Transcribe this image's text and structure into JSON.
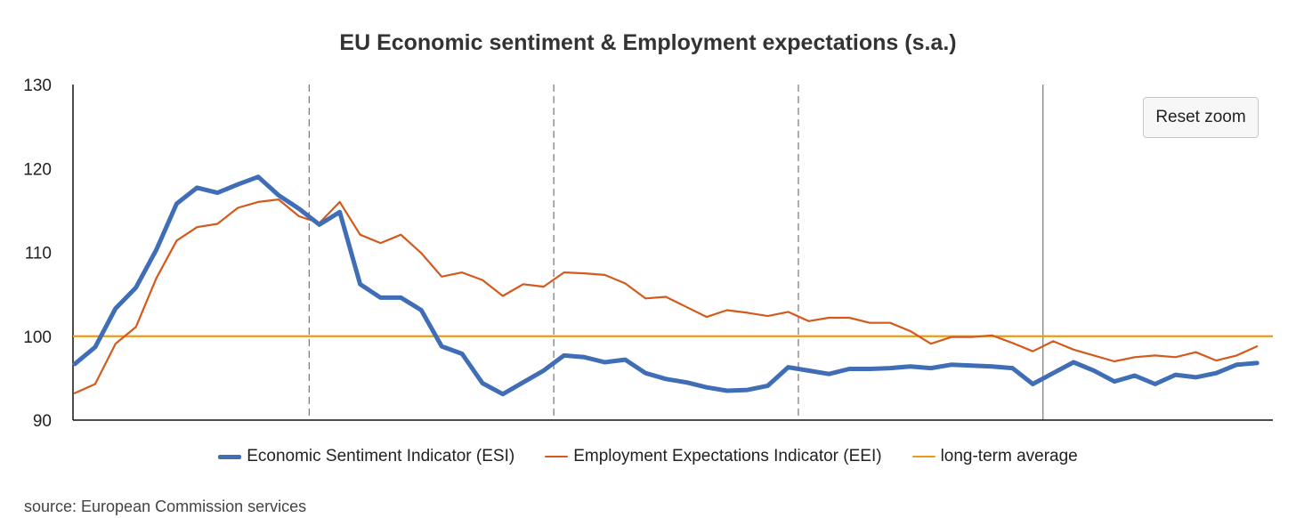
{
  "chart_data": {
    "type": "line",
    "title": "EU Economic sentiment & Employment expectations (s.a.)",
    "xlabel": "",
    "ylabel": "",
    "ylim": [
      90,
      130
    ],
    "yticks": [
      90,
      100,
      110,
      120,
      130
    ],
    "year_separators": [
      {
        "after_index": 11.5,
        "style": "dashed"
      },
      {
        "after_index": 23.5,
        "style": "dashed"
      },
      {
        "after_index": 35.5,
        "style": "dashed"
      },
      {
        "after_index": 47.5,
        "style": "solid"
      }
    ],
    "series": [
      {
        "name": "Economic Sentiment Indicator (ESI)",
        "color": "#3f6db6",
        "width": 5,
        "values": [
          96.7,
          98.7,
          103.3,
          105.8,
          110.3,
          115.8,
          117.7,
          117.1,
          118.1,
          119.0,
          116.8,
          115.2,
          113.3,
          114.8,
          106.2,
          104.6,
          104.6,
          103.1,
          98.8,
          97.9,
          94.4,
          93.1,
          94.5,
          95.9,
          97.7,
          97.5,
          96.9,
          97.2,
          95.6,
          94.9,
          94.5,
          93.9,
          93.5,
          93.6,
          94.1,
          96.3,
          95.9,
          95.5,
          96.1,
          96.1,
          96.2,
          96.4,
          96.2,
          96.6,
          96.5,
          96.4,
          96.2,
          94.3,
          95.6,
          96.9,
          95.9,
          94.6,
          95.3,
          94.3,
          95.4,
          95.1,
          95.6,
          96.6,
          96.8
        ]
      },
      {
        "name": "Employment Expectations Indicator (EEI)",
        "color": "#d45a1c",
        "width": 2.2,
        "values": [
          93.2,
          94.3,
          99.1,
          101.1,
          106.9,
          111.4,
          113.0,
          113.4,
          115.3,
          116.0,
          116.3,
          114.3,
          113.5,
          116.0,
          112.1,
          111.1,
          112.1,
          109.9,
          107.1,
          107.6,
          106.7,
          104.8,
          106.2,
          105.9,
          107.6,
          107.5,
          107.3,
          106.3,
          104.5,
          104.7,
          103.5,
          102.3,
          103.1,
          102.8,
          102.4,
          102.9,
          101.8,
          102.2,
          102.2,
          101.6,
          101.6,
          100.6,
          99.1,
          99.9,
          99.9,
          100.1,
          99.2,
          98.2,
          99.4,
          98.4,
          97.7,
          97.0,
          97.5,
          97.7,
          97.5,
          98.1,
          97.1,
          97.7,
          98.8
        ]
      },
      {
        "name": "long-term average",
        "color": "#e89b16",
        "width": 2.2,
        "value": 100
      }
    ],
    "legend": "bottom-center"
  },
  "reset_zoom_label": "Reset zoom",
  "source": "source: European Commission services"
}
